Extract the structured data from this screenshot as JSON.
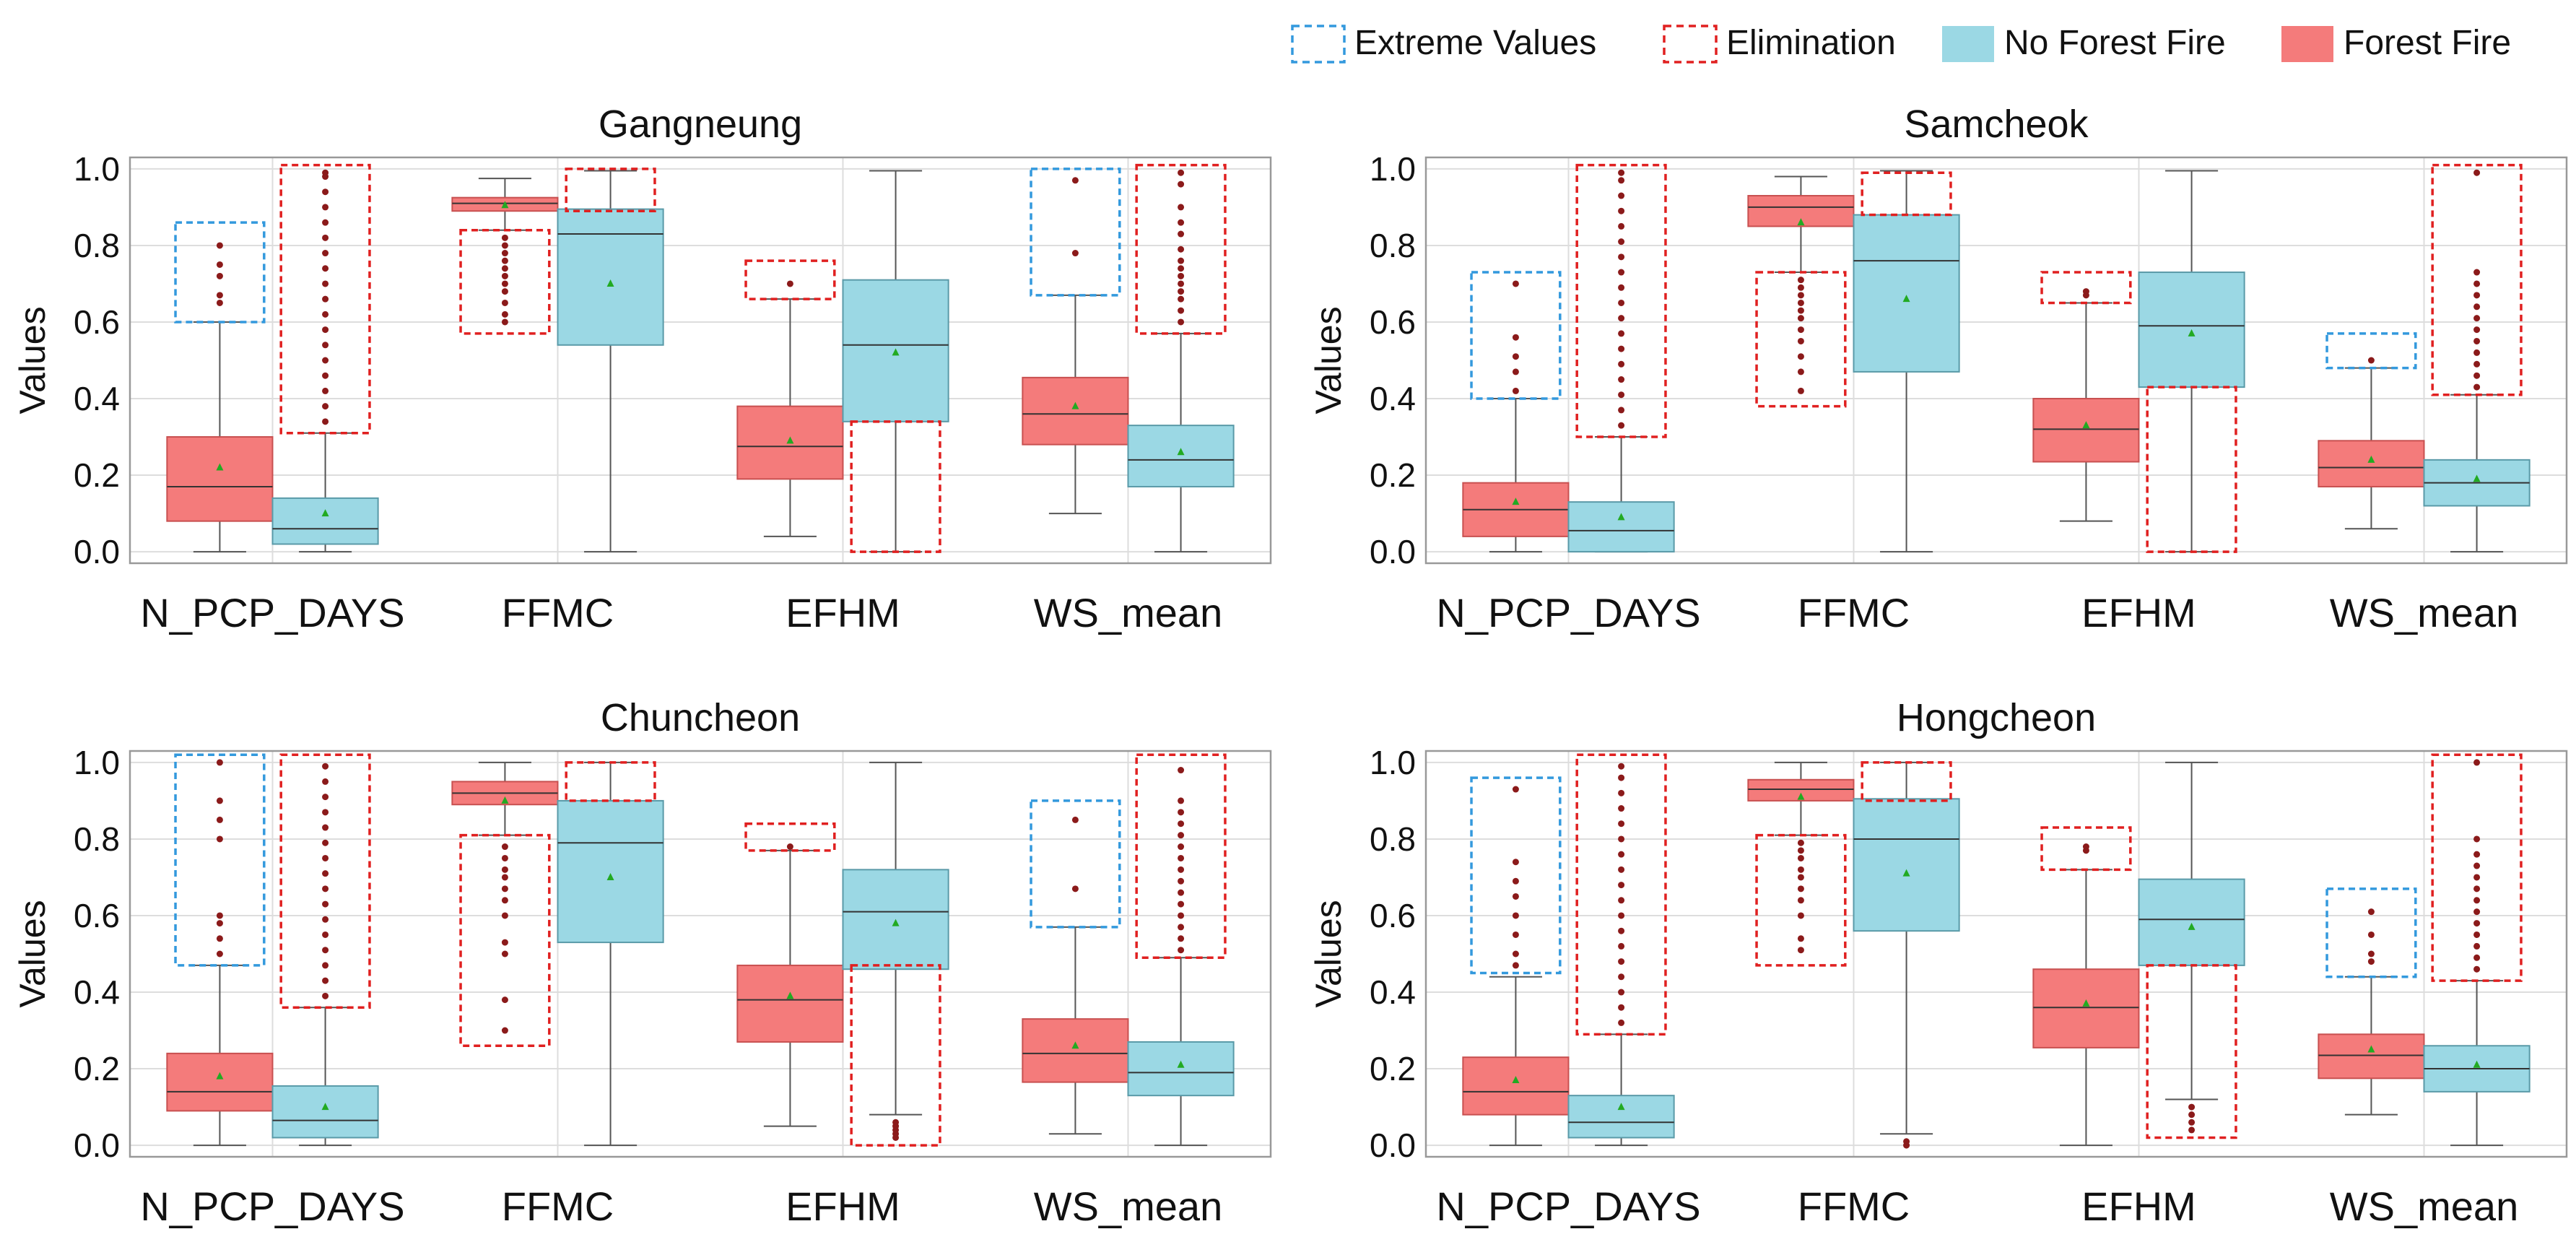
{
  "legend": {
    "items": [
      {
        "label": "Extreme Values",
        "kind": "dashed",
        "color": "#3399dd"
      },
      {
        "label": "Elimination",
        "kind": "dashed",
        "color": "#e02020"
      },
      {
        "label": "No Forest Fire",
        "kind": "fill",
        "color": "#9bd8e4"
      },
      {
        "label": "Forest Fire",
        "kind": "fill",
        "color": "#f47b7b"
      }
    ]
  },
  "colors": {
    "fire_fill": "#f47b7b",
    "fire_edge": "#c85050",
    "nofire_fill": "#9bd8e4",
    "nofire_edge": "#5a9aa8",
    "median": "#333333",
    "mean": "#22aa22",
    "outlier": "#8b1a1a",
    "extreme_box": "#3399dd",
    "elim_box": "#e02020"
  },
  "chart_data": [
    {
      "type": "box",
      "title": "Gangneung",
      "ylabel": "Values",
      "ylim": [
        0,
        1
      ],
      "yticks": [
        "0.0",
        "0.2",
        "0.4",
        "0.6",
        "0.8",
        "1.0"
      ],
      "categories": [
        "N_PCP_DAYS",
        "FFMC",
        "EFHM",
        "WS_mean"
      ],
      "series": [
        {
          "name": "Forest Fire",
          "boxes": [
            {
              "lo": 0.0,
              "q1": 0.08,
              "med": 0.17,
              "q3": 0.3,
              "hi": 0.6,
              "mean": 0.22,
              "out": [
                0.65,
                0.67,
                0.72,
                0.75,
                0.8
              ]
            },
            {
              "lo": 0.84,
              "q1": 0.89,
              "med": 0.91,
              "q3": 0.925,
              "hi": 0.975,
              "mean": 0.905,
              "out": [
                0.6,
                0.62,
                0.65,
                0.68,
                0.7,
                0.72,
                0.74,
                0.76,
                0.78,
                0.8,
                0.82
              ]
            },
            {
              "lo": 0.04,
              "q1": 0.19,
              "med": 0.275,
              "q3": 0.38,
              "hi": 0.66,
              "mean": 0.29,
              "out": [
                0.7
              ]
            },
            {
              "lo": 0.1,
              "q1": 0.28,
              "med": 0.36,
              "q3": 0.455,
              "hi": 0.67,
              "mean": 0.38,
              "out": [
                0.78,
                0.97
              ]
            }
          ]
        },
        {
          "name": "No Forest Fire",
          "boxes": [
            {
              "lo": 0.0,
              "q1": 0.02,
              "med": 0.06,
              "q3": 0.14,
              "hi": 0.31,
              "mean": 0.1,
              "out": [
                0.34,
                0.38,
                0.42,
                0.46,
                0.5,
                0.54,
                0.58,
                0.62,
                0.66,
                0.7,
                0.74,
                0.78,
                0.82,
                0.86,
                0.9,
                0.94,
                0.98,
                0.99
              ]
            },
            {
              "lo": 0.0,
              "q1": 0.54,
              "med": 0.83,
              "q3": 0.895,
              "hi": 0.995,
              "mean": 0.7,
              "out": []
            },
            {
              "lo": 0.0,
              "q1": 0.34,
              "med": 0.54,
              "q3": 0.71,
              "hi": 0.995,
              "mean": 0.52,
              "out": []
            },
            {
              "lo": 0.0,
              "q1": 0.17,
              "med": 0.24,
              "q3": 0.33,
              "hi": 0.57,
              "mean": 0.26,
              "out": [
                0.6,
                0.63,
                0.66,
                0.68,
                0.7,
                0.72,
                0.74,
                0.76,
                0.79,
                0.83,
                0.86,
                0.9,
                0.96,
                0.99
              ]
            }
          ]
        }
      ],
      "extreme_boxes": [
        {
          "cat": 0,
          "side": "fire",
          "lo": 0.6,
          "hi": 0.86
        },
        {
          "cat": 3,
          "side": "fire",
          "lo": 0.67,
          "hi": 1.0
        }
      ],
      "elimination_boxes": [
        {
          "cat": 0,
          "side": "nofire",
          "lo": 0.31,
          "hi": 1.01
        },
        {
          "cat": 1,
          "side": "fire",
          "lo": 0.57,
          "hi": 0.84
        },
        {
          "cat": 1,
          "side": "nofire",
          "lo": 0.89,
          "hi": 1.0
        },
        {
          "cat": 2,
          "side": "fire",
          "lo": 0.66,
          "hi": 0.76
        },
        {
          "cat": 2,
          "side": "nofire",
          "lo": 0.0,
          "hi": 0.34
        },
        {
          "cat": 3,
          "side": "nofire",
          "lo": 0.57,
          "hi": 1.01
        }
      ]
    },
    {
      "type": "box",
      "title": "Samcheok",
      "ylabel": "Values",
      "ylim": [
        0,
        1
      ],
      "yticks": [
        "0.0",
        "0.2",
        "0.4",
        "0.6",
        "0.8",
        "1.0"
      ],
      "categories": [
        "N_PCP_DAYS",
        "FFMC",
        "EFHM",
        "WS_mean"
      ],
      "series": [
        {
          "name": "Forest Fire",
          "boxes": [
            {
              "lo": 0.0,
              "q1": 0.04,
              "med": 0.11,
              "q3": 0.18,
              "hi": 0.4,
              "mean": 0.13,
              "out": [
                0.42,
                0.47,
                0.51,
                0.56,
                0.7
              ]
            },
            {
              "lo": 0.73,
              "q1": 0.85,
              "med": 0.9,
              "q3": 0.93,
              "hi": 0.98,
              "mean": 0.86,
              "out": [
                0.42,
                0.47,
                0.51,
                0.55,
                0.58,
                0.61,
                0.63,
                0.65,
                0.67,
                0.69,
                0.71
              ]
            },
            {
              "lo": 0.08,
              "q1": 0.235,
              "med": 0.32,
              "q3": 0.4,
              "hi": 0.65,
              "mean": 0.33,
              "out": [
                0.67,
                0.68
              ]
            },
            {
              "lo": 0.06,
              "q1": 0.17,
              "med": 0.22,
              "q3": 0.29,
              "hi": 0.48,
              "mean": 0.24,
              "out": [
                0.5
              ]
            }
          ]
        },
        {
          "name": "No Forest Fire",
          "boxes": [
            {
              "lo": 0.0,
              "q1": 0.0,
              "med": 0.055,
              "q3": 0.13,
              "hi": 0.3,
              "mean": 0.09,
              "out": [
                0.33,
                0.37,
                0.41,
                0.45,
                0.49,
                0.53,
                0.57,
                0.61,
                0.65,
                0.69,
                0.73,
                0.77,
                0.81,
                0.85,
                0.89,
                0.93,
                0.97,
                0.99
              ]
            },
            {
              "lo": 0.0,
              "q1": 0.47,
              "med": 0.76,
              "q3": 0.88,
              "hi": 0.995,
              "mean": 0.66,
              "out": []
            },
            {
              "lo": 0.0,
              "q1": 0.43,
              "med": 0.59,
              "q3": 0.73,
              "hi": 0.995,
              "mean": 0.57,
              "out": []
            },
            {
              "lo": 0.0,
              "q1": 0.12,
              "med": 0.18,
              "q3": 0.24,
              "hi": 0.41,
              "mean": 0.19,
              "out": [
                0.43,
                0.46,
                0.49,
                0.52,
                0.55,
                0.58,
                0.61,
                0.64,
                0.67,
                0.7,
                0.73,
                0.99
              ]
            }
          ]
        }
      ],
      "extreme_boxes": [
        {
          "cat": 0,
          "side": "fire",
          "lo": 0.4,
          "hi": 0.73
        },
        {
          "cat": 3,
          "side": "fire",
          "lo": 0.48,
          "hi": 0.57
        }
      ],
      "elimination_boxes": [
        {
          "cat": 0,
          "side": "nofire",
          "lo": 0.3,
          "hi": 1.01
        },
        {
          "cat": 1,
          "side": "fire",
          "lo": 0.38,
          "hi": 0.73
        },
        {
          "cat": 1,
          "side": "nofire",
          "lo": 0.88,
          "hi": 0.99
        },
        {
          "cat": 2,
          "side": "fire",
          "lo": 0.65,
          "hi": 0.73
        },
        {
          "cat": 2,
          "side": "nofire",
          "lo": 0.0,
          "hi": 0.43
        },
        {
          "cat": 3,
          "side": "nofire",
          "lo": 0.41,
          "hi": 1.01
        }
      ]
    },
    {
      "type": "box",
      "title": "Chuncheon",
      "ylabel": "Values",
      "ylim": [
        0,
        1
      ],
      "yticks": [
        "0.0",
        "0.2",
        "0.4",
        "0.6",
        "0.8",
        "1.0"
      ],
      "categories": [
        "N_PCP_DAYS",
        "FFMC",
        "EFHM",
        "WS_mean"
      ],
      "series": [
        {
          "name": "Forest Fire",
          "boxes": [
            {
              "lo": 0.0,
              "q1": 0.09,
              "med": 0.14,
              "q3": 0.24,
              "hi": 0.47,
              "mean": 0.18,
              "out": [
                0.5,
                0.54,
                0.58,
                0.6,
                0.8,
                0.85,
                0.9,
                1.0
              ]
            },
            {
              "lo": 0.81,
              "q1": 0.89,
              "med": 0.92,
              "q3": 0.95,
              "hi": 1.0,
              "mean": 0.9,
              "out": [
                0.3,
                0.38,
                0.5,
                0.53,
                0.6,
                0.64,
                0.67,
                0.7,
                0.72,
                0.75,
                0.78
              ]
            },
            {
              "lo": 0.05,
              "q1": 0.27,
              "med": 0.38,
              "q3": 0.47,
              "hi": 0.77,
              "mean": 0.39,
              "out": [
                0.78
              ]
            },
            {
              "lo": 0.03,
              "q1": 0.165,
              "med": 0.24,
              "q3": 0.33,
              "hi": 0.57,
              "mean": 0.26,
              "out": [
                0.67,
                0.85
              ]
            }
          ]
        },
        {
          "name": "No Forest Fire",
          "boxes": [
            {
              "lo": 0.0,
              "q1": 0.02,
              "med": 0.065,
              "q3": 0.155,
              "hi": 0.36,
              "mean": 0.1,
              "out": [
                0.39,
                0.43,
                0.47,
                0.51,
                0.55,
                0.59,
                0.63,
                0.67,
                0.71,
                0.75,
                0.79,
                0.83,
                0.87,
                0.91,
                0.95,
                0.99
              ]
            },
            {
              "lo": 0.0,
              "q1": 0.53,
              "med": 0.79,
              "q3": 0.9,
              "hi": 1.0,
              "mean": 0.7,
              "out": []
            },
            {
              "lo": 0.08,
              "q1": 0.46,
              "med": 0.61,
              "q3": 0.72,
              "hi": 1.0,
              "mean": 0.58,
              "out": [
                0.02,
                0.03,
                0.04,
                0.05,
                0.06
              ]
            },
            {
              "lo": 0.0,
              "q1": 0.13,
              "med": 0.19,
              "q3": 0.27,
              "hi": 0.49,
              "mean": 0.21,
              "out": [
                0.51,
                0.54,
                0.57,
                0.6,
                0.63,
                0.66,
                0.69,
                0.72,
                0.75,
                0.78,
                0.81,
                0.84,
                0.87,
                0.9,
                0.98
              ]
            }
          ]
        }
      ],
      "extreme_boxes": [
        {
          "cat": 0,
          "side": "fire",
          "lo": 0.47,
          "hi": 1.02
        },
        {
          "cat": 3,
          "side": "fire",
          "lo": 0.57,
          "hi": 0.9
        }
      ],
      "elimination_boxes": [
        {
          "cat": 0,
          "side": "nofire",
          "lo": 0.36,
          "hi": 1.02
        },
        {
          "cat": 1,
          "side": "fire",
          "lo": 0.26,
          "hi": 0.81
        },
        {
          "cat": 1,
          "side": "nofire",
          "lo": 0.9,
          "hi": 1.0
        },
        {
          "cat": 2,
          "side": "fire",
          "lo": 0.77,
          "hi": 0.84
        },
        {
          "cat": 2,
          "side": "nofire",
          "lo": 0.0,
          "hi": 0.47
        },
        {
          "cat": 3,
          "side": "nofire",
          "lo": 0.49,
          "hi": 1.02
        }
      ]
    },
    {
      "type": "box",
      "title": "Hongcheon",
      "ylabel": "Values",
      "ylim": [
        0,
        1
      ],
      "yticks": [
        "0.0",
        "0.2",
        "0.4",
        "0.6",
        "0.8",
        "1.0"
      ],
      "categories": [
        "N_PCP_DAYS",
        "FFMC",
        "EFHM",
        "WS_mean"
      ],
      "series": [
        {
          "name": "Forest Fire",
          "boxes": [
            {
              "lo": 0.0,
              "q1": 0.08,
              "med": 0.14,
              "q3": 0.23,
              "hi": 0.44,
              "mean": 0.17,
              "out": [
                0.47,
                0.5,
                0.55,
                0.6,
                0.65,
                0.69,
                0.74,
                0.93
              ]
            },
            {
              "lo": 0.81,
              "q1": 0.9,
              "med": 0.93,
              "q3": 0.955,
              "hi": 1.0,
              "mean": 0.91,
              "out": [
                0.51,
                0.54,
                0.6,
                0.64,
                0.67,
                0.7,
                0.72,
                0.75,
                0.77,
                0.79
              ]
            },
            {
              "lo": 0.0,
              "q1": 0.255,
              "med": 0.36,
              "q3": 0.46,
              "hi": 0.72,
              "mean": 0.37,
              "out": [
                0.77,
                0.78
              ]
            },
            {
              "lo": 0.08,
              "q1": 0.175,
              "med": 0.235,
              "q3": 0.29,
              "hi": 0.44,
              "mean": 0.25,
              "out": [
                0.48,
                0.5,
                0.55,
                0.61
              ]
            }
          ]
        },
        {
          "name": "No Forest Fire",
          "boxes": [
            {
              "lo": 0.0,
              "q1": 0.02,
              "med": 0.06,
              "q3": 0.13,
              "hi": 0.29,
              "mean": 0.1,
              "out": [
                0.32,
                0.36,
                0.4,
                0.44,
                0.48,
                0.52,
                0.56,
                0.6,
                0.64,
                0.68,
                0.72,
                0.76,
                0.8,
                0.84,
                0.88,
                0.92,
                0.96,
                0.99
              ]
            },
            {
              "lo": 0.03,
              "q1": 0.56,
              "med": 0.8,
              "q3": 0.905,
              "hi": 1.0,
              "mean": 0.71,
              "out": [
                0.0,
                0.01
              ]
            },
            {
              "lo": 0.12,
              "q1": 0.47,
              "med": 0.59,
              "q3": 0.695,
              "hi": 1.0,
              "mean": 0.57,
              "out": [
                0.04,
                0.06,
                0.08,
                0.1
              ]
            },
            {
              "lo": 0.0,
              "q1": 0.14,
              "med": 0.2,
              "q3": 0.26,
              "hi": 0.43,
              "mean": 0.21,
              "out": [
                0.46,
                0.49,
                0.52,
                0.55,
                0.58,
                0.61,
                0.64,
                0.67,
                0.7,
                0.73,
                0.76,
                0.8,
                1.0
              ]
            }
          ]
        }
      ],
      "extreme_boxes": [
        {
          "cat": 0,
          "side": "fire",
          "lo": 0.45,
          "hi": 0.96
        },
        {
          "cat": 3,
          "side": "fire",
          "lo": 0.44,
          "hi": 0.67
        }
      ],
      "elimination_boxes": [
        {
          "cat": 0,
          "side": "nofire",
          "lo": 0.29,
          "hi": 1.02
        },
        {
          "cat": 1,
          "side": "fire",
          "lo": 0.47,
          "hi": 0.81
        },
        {
          "cat": 1,
          "side": "nofire",
          "lo": 0.9,
          "hi": 1.0
        },
        {
          "cat": 2,
          "side": "fire",
          "lo": 0.72,
          "hi": 0.83
        },
        {
          "cat": 2,
          "side": "nofire",
          "lo": 0.02,
          "hi": 0.47
        },
        {
          "cat": 3,
          "side": "nofire",
          "lo": 0.43,
          "hi": 1.02
        }
      ]
    }
  ]
}
